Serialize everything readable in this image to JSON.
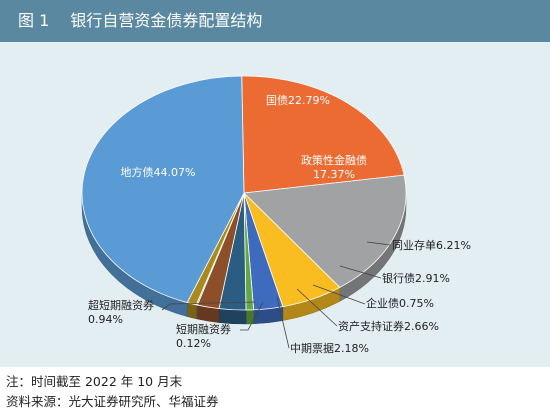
{
  "figure": {
    "number": "图 1",
    "title": "银行自营资金债券配置结构"
  },
  "notes": {
    "note": "注：时间截至 2022 年 10 月末",
    "source": "资料来源：光大证券研究所、华福证券"
  },
  "chart_data": {
    "type": "pie",
    "style": "3d-pie",
    "title": "银行自营资金债券配置结构",
    "slices": [
      {
        "label": "国债",
        "value": 22.79,
        "display": "国债22.79%",
        "color": "#ec6b32",
        "label_pos": "inside"
      },
      {
        "label": "政策性金融债",
        "value": 17.37,
        "display": "政策性金融债\n17.37%",
        "color": "#a0a2a4",
        "label_pos": "inside"
      },
      {
        "label": "同业存单",
        "value": 6.21,
        "display": "同业存单6.21%",
        "color": "#f9bd22",
        "label_pos": "outside"
      },
      {
        "label": "银行债",
        "value": 2.91,
        "display": "银行债2.91%",
        "color": "#3e6bbd",
        "label_pos": "outside"
      },
      {
        "label": "企业债",
        "value": 0.75,
        "display": "企业债0.75%",
        "color": "#62a645",
        "label_pos": "outside"
      },
      {
        "label": "资产支持证券",
        "value": 2.66,
        "display": "资产支持证券2.66%",
        "color": "#2b5c82",
        "label_pos": "outside"
      },
      {
        "label": "中期票据",
        "value": 2.18,
        "display": "中期票据2.18%",
        "color": "#8d4f2a",
        "label_pos": "outside"
      },
      {
        "label": "短期融资券",
        "value": 0.12,
        "display": "短期融资券\n0.12%",
        "color": "#7a7a7a",
        "label_pos": "outside"
      },
      {
        "label": "超短期融资券",
        "value": 0.94,
        "display": "超短期融资券\n0.94%",
        "color": "#a98a1c",
        "label_pos": "outside"
      },
      {
        "label": "地方债",
        "value": 44.07,
        "display": "地方债44.07%",
        "color": "#5b9bd5",
        "label_pos": "inside"
      }
    ]
  }
}
